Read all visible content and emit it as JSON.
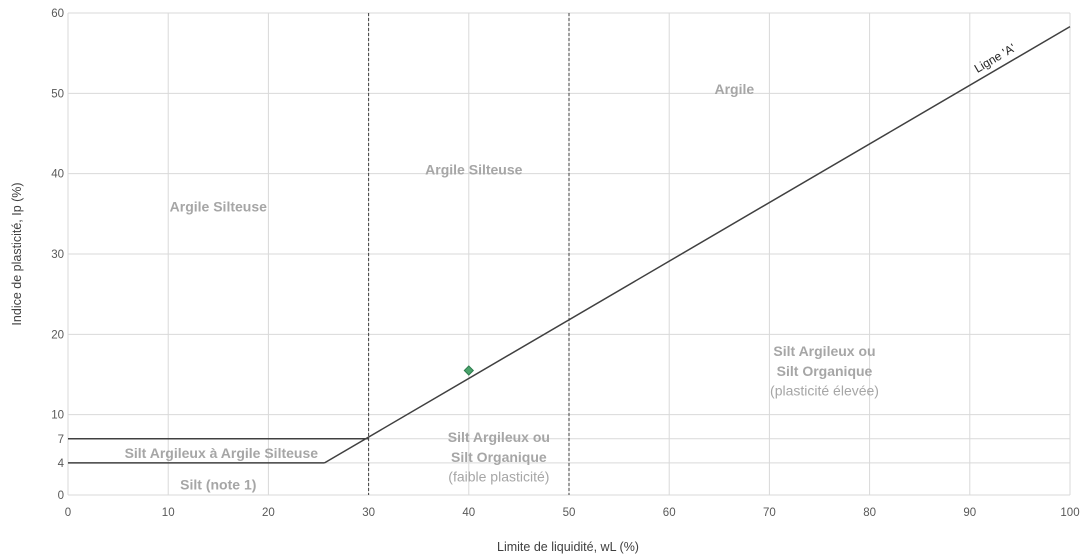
{
  "chart_data": {
    "type": "scatter",
    "title": "",
    "xlabel": "Limite de liquidité, wL (%)",
    "ylabel": "Indice de plasticité, Ip (%)",
    "xlim": [
      0,
      100
    ],
    "ylim": [
      0,
      60
    ],
    "grid": true,
    "x_ticks": [
      0,
      10,
      20,
      30,
      40,
      50,
      60,
      70,
      80,
      90,
      100
    ],
    "y_ticks": [
      0,
      4,
      7,
      10,
      20,
      30,
      40,
      50,
      60
    ],
    "point": {
      "x": 40,
      "y": 15.5,
      "color": "#4aa36b"
    },
    "a_line": {
      "label": "Ligne 'A'",
      "points": [
        [
          25.6,
          4
        ],
        [
          100,
          58.3
        ]
      ]
    },
    "boundaries": [
      {
        "x": [
          0,
          30
        ],
        "y": [
          7,
          7
        ]
      },
      {
        "x": [
          0,
          25.6
        ],
        "y": [
          4,
          4
        ]
      }
    ],
    "vertical_dashed": [
      30,
      50
    ],
    "zone_labels": [
      {
        "text": "Argile Silteuse",
        "x": 15,
        "y": 35.3,
        "style": "bold"
      },
      {
        "text": "Argile Silteuse",
        "x": 40.5,
        "y": 39.9,
        "style": "bold"
      },
      {
        "text": "Argile",
        "x": 66.5,
        "y": 49.9,
        "style": "bold"
      },
      {
        "text": "Silt Argileux ou",
        "x": 75.5,
        "y": 17.3,
        "style": "bold"
      },
      {
        "text": "Silt Organique",
        "x": 75.5,
        "y": 14.8,
        "style": "bold"
      },
      {
        "text": "(plasticité élevée)",
        "x": 75.5,
        "y": 12.4,
        "style": "normal"
      },
      {
        "text": "Silt Argileux ou",
        "x": 43,
        "y": 6.6,
        "style": "bold"
      },
      {
        "text": "Silt Organique",
        "x": 43,
        "y": 4.1,
        "style": "bold"
      },
      {
        "text": "(faible plasticité)",
        "x": 43,
        "y": 1.7,
        "style": "normal"
      },
      {
        "text": "Silt Argileux à Argile Silteuse",
        "x": 15.3,
        "y": 4.6,
        "style": "bold"
      },
      {
        "text": "Silt (note 1)",
        "x": 15,
        "y": 0.7,
        "style": "bold"
      }
    ],
    "colors": {
      "grid": "#d9d9d9",
      "line": "#404040",
      "zone_text": "#a6a6a6"
    }
  }
}
